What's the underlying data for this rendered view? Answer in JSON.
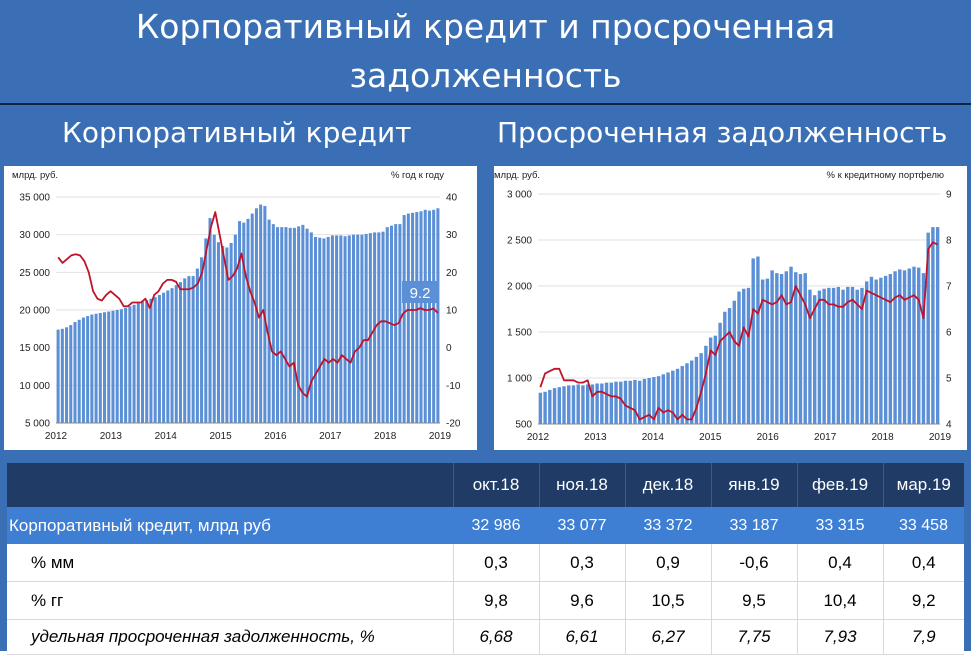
{
  "title": "Корпоративный кредит и просроченная задолженность",
  "chart_data": [
    {
      "type": "bar",
      "title": "Корпоративный кредит",
      "left_unit": "млрд. руб.",
      "right_unit": "% год к году",
      "ylim": [
        5000,
        35000
      ],
      "y_ticks": [
        "35 000",
        "30 000",
        "25 000",
        "20 000",
        "15 000",
        "10 000",
        "5 000"
      ],
      "y2lim": [
        -20,
        40
      ],
      "y2_ticks": [
        "40",
        "30",
        "20",
        "10",
        "0",
        "-10",
        "-20"
      ],
      "x_ticks": [
        "2012",
        "2013",
        "2014",
        "2015",
        "2016",
        "2017",
        "2018",
        "2019"
      ],
      "callout": "9.2",
      "series": [
        {
          "values": [
            17400,
            17500,
            17700,
            18000,
            18400,
            18700,
            19000,
            19200,
            19400,
            19500,
            19600,
            19700,
            19800,
            19900,
            20000,
            20100,
            20300,
            20500,
            20700,
            20900,
            21100,
            21300,
            21500,
            21700,
            22000,
            22300,
            22600,
            22900,
            23300,
            23700,
            24200,
            24500,
            24500,
            25500,
            27000,
            29500,
            32200,
            30000,
            29000,
            28500,
            28300,
            28900,
            30000,
            31800,
            31600,
            32100,
            32800,
            33500,
            34000,
            33800,
            32000,
            31400,
            31000,
            31000,
            31000,
            30900,
            30900,
            31100,
            31300,
            30800,
            30300,
            29700,
            29600,
            29500,
            29700,
            29900,
            29900,
            29900,
            29800,
            29900,
            30000,
            30000,
            30000,
            30100,
            30200,
            30300,
            30300,
            30400,
            31000,
            31200,
            31400,
            31400,
            32600,
            32800,
            32900,
            33000,
            33100,
            33300,
            33200,
            33300,
            33500
          ]
        },
        {
          "values": [
            24,
            22.5,
            23.5,
            24.5,
            24.8,
            24.5,
            23,
            20,
            15,
            13,
            12.5,
            14,
            15,
            14,
            13,
            11,
            11,
            12,
            12,
            12,
            13,
            10.5,
            14,
            15,
            17,
            18,
            18,
            17.5,
            15.5,
            15.5,
            15.5,
            16,
            17,
            20,
            26,
            32,
            36,
            30,
            24,
            18,
            19,
            21,
            25,
            19,
            15,
            12,
            8,
            10,
            4,
            -1,
            -2,
            -1,
            -3,
            -5,
            -4,
            -10,
            -12,
            -13,
            -9,
            -7,
            -5,
            -3,
            -4,
            -3,
            -4,
            -2,
            -3,
            -4,
            -1,
            0,
            2,
            2,
            4,
            6,
            7,
            7,
            6.5,
            6,
            6.5,
            9,
            10,
            10,
            10,
            10.5,
            10,
            10,
            10.4,
            9.2
          ]
        }
      ]
    },
    {
      "type": "bar",
      "title": "Просроченная задолженность",
      "left_unit": "млрд. руб.",
      "right_unit": "% к кредитному портфелю",
      "ylim": [
        500,
        3000
      ],
      "y_ticks": [
        "3 000",
        "2 500",
        "2 000",
        "1 500",
        "1 000",
        "500"
      ],
      "y2lim": [
        4,
        9
      ],
      "y2_ticks": [
        "9",
        "8",
        "7",
        "6",
        "5",
        "4"
      ],
      "x_ticks": [
        "2012",
        "2013",
        "2014",
        "2015",
        "2016",
        "2017",
        "2018",
        "2019"
      ],
      "series": [
        {
          "values": [
            840,
            850,
            870,
            890,
            900,
            910,
            920,
            920,
            930,
            920,
            930,
            930,
            940,
            940,
            950,
            950,
            960,
            960,
            970,
            970,
            980,
            970,
            990,
            1000,
            1010,
            1020,
            1040,
            1060,
            1080,
            1100,
            1130,
            1160,
            1190,
            1230,
            1270,
            1350,
            1440,
            1460,
            1600,
            1720,
            1760,
            1840,
            1940,
            1970,
            1980,
            2300,
            2320,
            2070,
            2080,
            2170,
            2140,
            2130,
            2160,
            2210,
            2150,
            2130,
            2140,
            1960,
            1900,
            1950,
            1970,
            1980,
            1980,
            1990,
            1960,
            1990,
            1990,
            1960,
            1980,
            2050,
            2100,
            2070,
            2090,
            2110,
            2130,
            2160,
            2180,
            2170,
            2190,
            2210,
            2200,
            2140,
            2580,
            2640,
            2640
          ]
        },
        {
          "values": [
            4.8,
            5.1,
            5.15,
            5.2,
            5.2,
            4.95,
            4.95,
            4.95,
            4.9,
            4.9,
            4.95,
            4.6,
            4.7,
            4.7,
            4.65,
            4.6,
            4.6,
            4.55,
            4.4,
            4.35,
            4.3,
            4.1,
            4.15,
            4.2,
            4.1,
            4.35,
            4.25,
            4.3,
            4.25,
            4.1,
            4.2,
            4.1,
            4.1,
            4.35,
            4.7,
            5.1,
            5.6,
            5.5,
            5.8,
            5.9,
            6.0,
            5.8,
            5.7,
            6.1,
            5.9,
            6.5,
            6.4,
            6.7,
            6.65,
            6.6,
            6.65,
            6.8,
            6.6,
            6.65,
            7.0,
            6.8,
            6.6,
            6.3,
            6.5,
            6.7,
            6.7,
            6.6,
            6.6,
            6.55,
            6.55,
            6.65,
            6.7,
            6.6,
            6.5,
            6.9,
            6.85,
            6.8,
            6.75,
            6.7,
            6.65,
            6.75,
            6.8,
            6.7,
            6.75,
            6.8,
            6.7,
            6.3,
            7.8,
            7.95,
            7.9
          ]
        }
      ]
    }
  ],
  "table": {
    "headers": [
      "окт.18",
      "ноя.18",
      "дек.18",
      "янв.19",
      "фев.19",
      "мар.19"
    ],
    "rows": [
      {
        "label": "Корпоративный кредит, млрд руб",
        "values": [
          "32 986",
          "33 077",
          "33 372",
          "33 187",
          "33 315",
          "33 458"
        ]
      },
      {
        "label": "% мм",
        "values": [
          "0,3",
          "0,3",
          "0,9",
          "-0,6",
          "0,4",
          "0,4"
        ]
      },
      {
        "label": "% гг",
        "values": [
          "9,8",
          "9,6",
          "10,5",
          "9,5",
          "10,4",
          "9,2"
        ]
      },
      {
        "label": "удельная просроченная задолженность, %",
        "values": [
          "6,68",
          "6,61",
          "6,27",
          "7,75",
          "7,93",
          "7,9"
        ]
      }
    ]
  },
  "colors": {
    "bar": "#5b8fd6",
    "line": "#c0122a",
    "header_bg": "#1f3b66",
    "highlight_bg": "#3e7ed3",
    "slide_bg": "#3a6fb6"
  }
}
